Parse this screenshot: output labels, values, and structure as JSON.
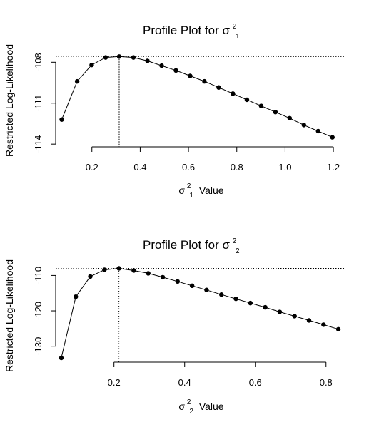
{
  "chart_data": [
    {
      "type": "line",
      "title": "Profile Plot for σ",
      "title_sup": "2",
      "title_sub": "1",
      "xlabel": "σ",
      "xlabel_sup": "2",
      "xlabel_sub": "1",
      "xlabel_suffix": "Value",
      "ylabel": "Restricted Log-Likelihood",
      "xlim": [
        0.05,
        1.25
      ],
      "ylim": [
        -114.2,
        -107.2
      ],
      "xticks": [
        0.2,
        0.4,
        0.6,
        0.8,
        1.0,
        1.2
      ],
      "xtick_labels": [
        "0.2",
        "0.4",
        "0.6",
        "0.8",
        "1.0",
        "1.2"
      ],
      "yticks": [
        -114,
        -111,
        -108
      ],
      "ytick_labels": [
        "-114",
        "-111",
        "-108"
      ],
      "x": [
        0.075,
        0.139,
        0.199,
        0.257,
        0.313,
        0.372,
        0.43,
        0.489,
        0.548,
        0.607,
        0.666,
        0.725,
        0.784,
        0.842,
        0.901,
        0.96,
        1.019,
        1.078,
        1.137,
        1.196
      ],
      "y": [
        -112.2,
        -109.4,
        -108.2,
        -107.65,
        -107.58,
        -107.65,
        -107.9,
        -108.25,
        -108.6,
        -109.0,
        -109.4,
        -109.85,
        -110.3,
        -110.75,
        -111.2,
        -111.65,
        -112.1,
        -112.6,
        -113.05,
        -113.5
      ],
      "max_x": 0.313,
      "max_y": -107.58
    },
    {
      "type": "line",
      "title": "Profile Plot for σ",
      "title_sup": "2",
      "title_sub": "2",
      "xlabel": "σ",
      "xlabel_sup": "2",
      "xlabel_sub": "2",
      "xlabel_suffix": "Value",
      "ylabel": "Restricted Log-Likelihood",
      "xlim": [
        0.035,
        0.855
      ],
      "ylim": [
        -134.5,
        -107.5
      ],
      "xticks": [
        0.2,
        0.4,
        0.6,
        0.8
      ],
      "xtick_labels": [
        "0.2",
        "0.4",
        "0.6",
        "0.8"
      ],
      "yticks": [
        -130,
        -120,
        -110
      ],
      "ytick_labels": [
        "-130",
        "-120",
        "-110"
      ],
      "x": [
        0.051,
        0.092,
        0.133,
        0.173,
        0.214,
        0.256,
        0.297,
        0.338,
        0.38,
        0.421,
        0.462,
        0.504,
        0.545,
        0.586,
        0.628,
        0.669,
        0.711,
        0.752,
        0.793,
        0.835
      ],
      "y": [
        -133.3,
        -116.0,
        -110.3,
        -108.4,
        -108.0,
        -108.6,
        -109.4,
        -110.5,
        -111.7,
        -112.9,
        -114.1,
        -115.4,
        -116.6,
        -117.8,
        -119.0,
        -120.3,
        -121.5,
        -122.7,
        -123.9,
        -125.2
      ],
      "max_x": 0.214,
      "max_y": -108.0
    }
  ]
}
